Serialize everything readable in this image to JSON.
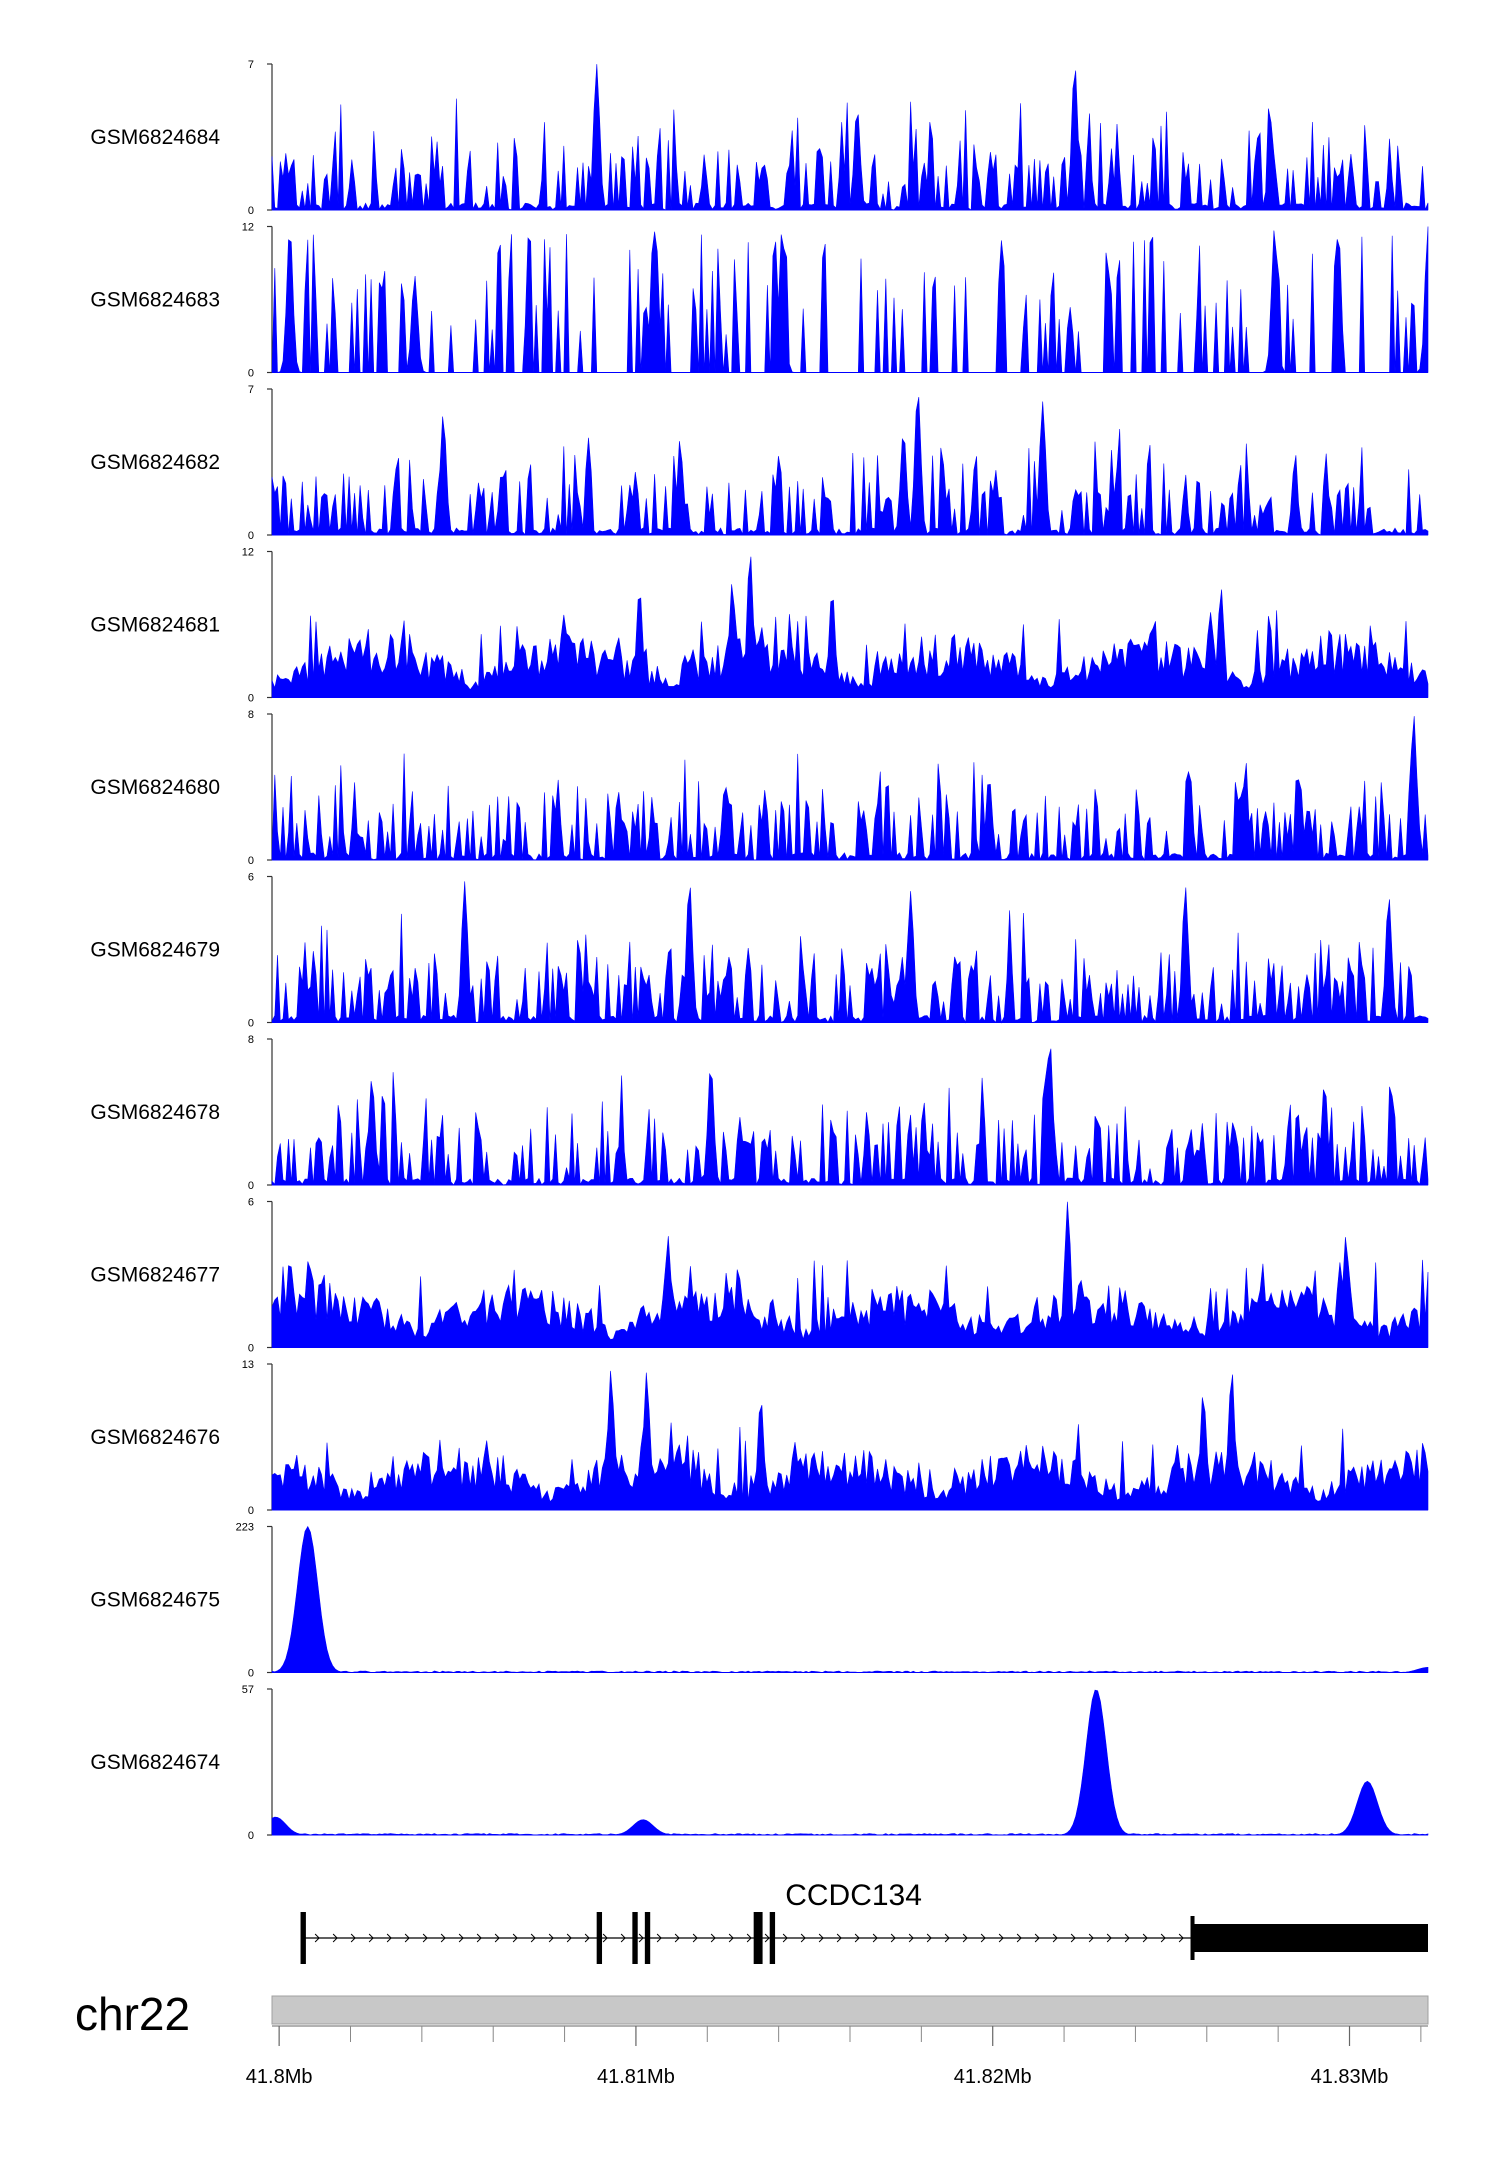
{
  "chart_data": {
    "type": "area",
    "chromosome": "chr22",
    "gene": {
      "name": "CCDC134",
      "start": 41.8007,
      "end": 41.8324,
      "exons": [
        {
          "start": 41.8006,
          "end": 41.80075,
          "thick": false
        },
        {
          "start": 41.8089,
          "end": 41.80905,
          "thick": false
        },
        {
          "start": 41.8099,
          "end": 41.81005,
          "thick": false
        },
        {
          "start": 41.81025,
          "end": 41.8104,
          "thick": false
        },
        {
          "start": 41.8133,
          "end": 41.81345,
          "thick": false
        },
        {
          "start": 41.8134,
          "end": 41.81355,
          "thick": false
        },
        {
          "start": 41.81375,
          "end": 41.8139,
          "thick": false
        },
        {
          "start": 41.8256,
          "end": 41.8324,
          "thick": true
        }
      ]
    },
    "x_axis": {
      "range": [
        41.7998,
        41.8322
      ],
      "ticks": [
        41.8,
        41.81,
        41.82,
        41.83
      ],
      "tick_labels": [
        "41.8Mb",
        "41.81Mb",
        "41.82Mb",
        "41.83Mb"
      ],
      "minor_ticks": [
        41.802,
        41.804,
        41.806,
        41.808,
        41.812,
        41.814,
        41.816,
        41.818,
        41.822,
        41.824,
        41.826,
        41.828,
        41.832
      ]
    },
    "series": [
      {
        "name": "GSM6824684",
        "ymin": 0,
        "ymax": 7,
        "y_tick_labels": [
          "0",
          "7"
        ],
        "pattern": "spiky",
        "peaks": [
          [
            41.8089,
            7.0
          ],
          [
            41.8223,
            7.0
          ],
          [
            41.8278,
            4.2
          ],
          [
            41.8162,
            4.9
          ]
        ]
      },
      {
        "name": "GSM6824683",
        "ymin": 0,
        "ymax": 12,
        "y_tick_labels": [
          "0",
          "12"
        ],
        "pattern": "sparse",
        "peaks": [
          [
            41.8003,
            12.0
          ],
          [
            41.8105,
            12.0
          ],
          [
            41.8141,
            12.0
          ],
          [
            41.8279,
            12.0
          ],
          [
            41.8322,
            12.0
          ],
          [
            41.8038,
            8.0
          ]
        ]
      },
      {
        "name": "GSM6824682",
        "ymin": 0,
        "ymax": 7,
        "y_tick_labels": [
          "0",
          "7"
        ],
        "pattern": "spiky",
        "peaks": [
          [
            41.8179,
            7.0
          ],
          [
            41.8214,
            6.4
          ],
          [
            41.8046,
            5.8
          ],
          [
            41.8175,
            5.0
          ]
        ]
      },
      {
        "name": "GSM6824681",
        "ymin": 0,
        "ymax": 12,
        "y_tick_labels": [
          "0",
          "12"
        ],
        "pattern": "dense",
        "peaks": [
          [
            41.8132,
            12.0
          ],
          [
            41.8127,
            9.5
          ],
          [
            41.8101,
            9.0
          ],
          [
            41.8155,
            8.8
          ],
          [
            41.8264,
            9.0
          ]
        ]
      },
      {
        "name": "GSM6824680",
        "ymin": 0,
        "ymax": 8,
        "y_tick_labels": [
          "0",
          "8"
        ],
        "pattern": "spiky",
        "peaks": [
          [
            41.8318,
            8.0
          ],
          [
            41.8286,
            4.6
          ],
          [
            41.8199,
            4.5
          ],
          [
            41.8125,
            4.2
          ]
        ]
      },
      {
        "name": "GSM6824679",
        "ymin": 0,
        "ymax": 6,
        "y_tick_labels": [
          "0",
          "6"
        ],
        "pattern": "spiky",
        "peaks": [
          [
            41.8052,
            5.8
          ],
          [
            41.8115,
            5.8
          ],
          [
            41.8254,
            5.6
          ],
          [
            41.8177,
            5.4
          ],
          [
            41.8311,
            5.2
          ]
        ]
      },
      {
        "name": "GSM6824678",
        "ymin": 0,
        "ymax": 8,
        "y_tick_labels": [
          "0",
          "8"
        ],
        "pattern": "spiky",
        "peaks": [
          [
            41.8216,
            8.0
          ],
          [
            41.8121,
            6.6
          ],
          [
            41.8293,
            5.6
          ],
          [
            41.8026,
            5.9
          ]
        ]
      },
      {
        "name": "GSM6824677",
        "ymin": 0,
        "ymax": 6,
        "y_tick_labels": [
          "0",
          "6"
        ],
        "pattern": "dense",
        "peaks": [
          [
            41.8221,
            6.0
          ],
          [
            41.8109,
            4.6
          ],
          [
            41.8003,
            3.7
          ],
          [
            41.8299,
            4.6
          ]
        ]
      },
      {
        "name": "GSM6824676",
        "ymin": 0,
        "ymax": 13,
        "y_tick_labels": [
          "0",
          "13"
        ],
        "pattern": "dense",
        "peaks": [
          [
            41.8093,
            12.5
          ],
          [
            41.8103,
            12.3
          ],
          [
            41.8267,
            12.5
          ],
          [
            41.8259,
            10.5
          ],
          [
            41.8135,
            10.0
          ]
        ]
      },
      {
        "name": "GSM6824675",
        "ymin": 0,
        "ymax": 223,
        "y_tick_labels": [
          "0",
          "223"
        ],
        "pattern": "single",
        "peaks": [
          [
            41.8008,
            223
          ],
          [
            41.8322,
            8
          ]
        ]
      },
      {
        "name": "GSM6824674",
        "ymin": 0,
        "ymax": 57,
        "y_tick_labels": [
          "0",
          "57"
        ],
        "pattern": "single",
        "peaks": [
          [
            41.8229,
            57
          ],
          [
            41.8305,
            21
          ],
          [
            41.8102,
            6
          ],
          [
            41.7999,
            7
          ]
        ]
      }
    ]
  }
}
